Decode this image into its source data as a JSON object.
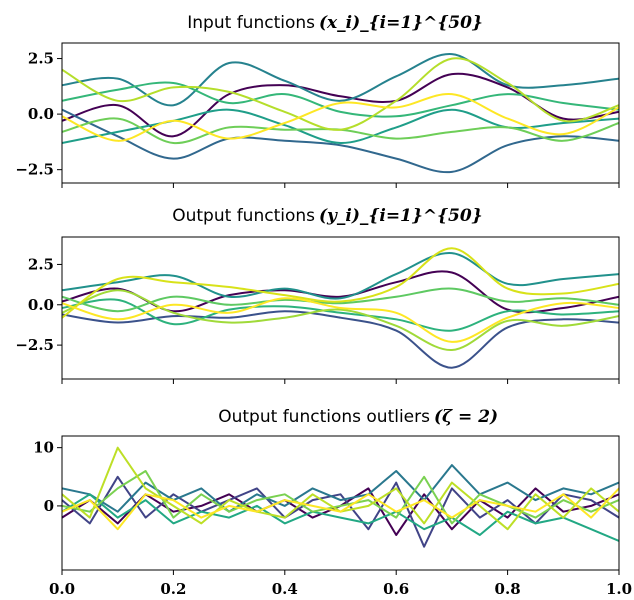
{
  "chart_data": [
    {
      "type": "line",
      "title": "Input functions",
      "title_math": "(x_i)_{i=1}^{50}",
      "n_series": 50,
      "xlim": [
        0,
        1
      ],
      "ylim": [
        -3.1,
        3.2
      ],
      "yticks": [
        -2.5,
        0.0,
        2.5
      ],
      "ytick_labels": [
        "−2.5",
        "0.0",
        "2.5"
      ],
      "xticks": [
        0.0,
        0.2,
        0.4,
        0.6,
        0.8,
        1.0
      ],
      "xtick_labels": [],
      "colormap": "viridis",
      "series": [
        {
          "color": "#440154",
          "x": [
            0.0,
            0.1,
            0.2,
            0.3,
            0.4,
            0.5,
            0.6,
            0.7,
            0.8,
            0.9,
            1.0
          ],
          "y": [
            -0.3,
            0.4,
            -1.0,
            0.9,
            1.3,
            0.8,
            0.6,
            1.8,
            1.2,
            -0.2,
            0.1
          ]
        },
        {
          "color": "#31688e",
          "x": [
            0.0,
            0.1,
            0.2,
            0.3,
            0.4,
            0.5,
            0.6,
            0.7,
            0.8,
            0.9,
            1.0
          ],
          "y": [
            0.2,
            -1.0,
            -2.0,
            -1.1,
            -1.2,
            -1.4,
            -2.0,
            -2.6,
            -1.4,
            -1.0,
            -1.2
          ]
        },
        {
          "color": "#26828e",
          "x": [
            0.0,
            0.1,
            0.2,
            0.3,
            0.4,
            0.5,
            0.6,
            0.7,
            0.8,
            0.9,
            1.0
          ],
          "y": [
            1.3,
            1.6,
            0.4,
            2.3,
            1.5,
            0.6,
            1.7,
            2.7,
            1.3,
            1.3,
            1.6
          ]
        },
        {
          "color": "#1f9e89",
          "x": [
            0.0,
            0.1,
            0.2,
            0.3,
            0.4,
            0.5,
            0.6,
            0.7,
            0.8,
            0.9,
            1.0
          ],
          "y": [
            -1.3,
            -0.8,
            -0.3,
            0.2,
            -0.5,
            -1.3,
            -0.6,
            0.2,
            -0.6,
            -0.4,
            -0.2
          ]
        },
        {
          "color": "#35b779",
          "x": [
            0.0,
            0.1,
            0.2,
            0.3,
            0.4,
            0.5,
            0.6,
            0.7,
            0.8,
            0.9,
            1.0
          ],
          "y": [
            0.6,
            1.1,
            1.4,
            0.5,
            0.9,
            0.1,
            -0.1,
            0.4,
            0.9,
            0.5,
            0.2
          ]
        },
        {
          "color": "#6ece58",
          "x": [
            0.0,
            0.1,
            0.2,
            0.3,
            0.4,
            0.5,
            0.6,
            0.7,
            0.8,
            0.9,
            1.0
          ],
          "y": [
            -0.8,
            -0.2,
            -1.3,
            -0.6,
            -0.7,
            -0.7,
            -1.1,
            -0.8,
            -0.6,
            -1.2,
            -0.4
          ]
        },
        {
          "color": "#b5de2b",
          "x": [
            0.0,
            0.1,
            0.2,
            0.3,
            0.4,
            0.5,
            0.6,
            0.7,
            0.8,
            0.9,
            1.0
          ],
          "y": [
            2.0,
            0.6,
            1.2,
            1.0,
            0.1,
            -0.7,
            0.6,
            2.5,
            1.4,
            -0.3,
            0.4
          ]
        },
        {
          "color": "#fde725",
          "x": [
            0.0,
            0.1,
            0.2,
            0.3,
            0.4,
            0.5,
            0.6,
            0.7,
            0.8,
            0.9,
            1.0
          ],
          "y": [
            -0.1,
            -1.2,
            -0.3,
            -1.1,
            -0.4,
            0.5,
            0.3,
            0.9,
            -0.2,
            -0.9,
            0.3
          ]
        }
      ]
    },
    {
      "type": "line",
      "title": "Output functions",
      "title_math": "(y_i)_{i=1}^{50}",
      "n_series": 50,
      "xlim": [
        0,
        1
      ],
      "ylim": [
        -4.6,
        4.2
      ],
      "yticks": [
        -2.5,
        0.0,
        2.5
      ],
      "ytick_labels": [
        "−2.5",
        "0.0",
        "2.5"
      ],
      "xticks": [
        0.0,
        0.2,
        0.4,
        0.6,
        0.8,
        1.0
      ],
      "xtick_labels": [],
      "colormap": "viridis",
      "series": [
        {
          "color": "#440154",
          "x": [
            0.0,
            0.1,
            0.2,
            0.3,
            0.4,
            0.5,
            0.6,
            0.7,
            0.8,
            0.9,
            1.0
          ],
          "y": [
            0.2,
            1.0,
            -0.4,
            0.6,
            0.9,
            0.5,
            1.4,
            2.0,
            -0.3,
            -0.2,
            0.5
          ]
        },
        {
          "color": "#3b528b",
          "x": [
            0.0,
            0.1,
            0.2,
            0.3,
            0.4,
            0.5,
            0.6,
            0.7,
            0.8,
            0.9,
            1.0
          ],
          "y": [
            -0.6,
            -1.1,
            -0.7,
            -0.8,
            -0.4,
            -0.8,
            -1.6,
            -3.9,
            -1.4,
            -0.9,
            -1.1
          ]
        },
        {
          "color": "#21918c",
          "x": [
            0.0,
            0.1,
            0.2,
            0.3,
            0.4,
            0.5,
            0.6,
            0.7,
            0.8,
            0.9,
            1.0
          ],
          "y": [
            0.9,
            1.4,
            1.8,
            0.5,
            1.0,
            0.4,
            1.9,
            3.2,
            1.3,
            1.6,
            1.9
          ]
        },
        {
          "color": "#2db27d",
          "x": [
            0.0,
            0.1,
            0.2,
            0.3,
            0.4,
            0.5,
            0.6,
            0.7,
            0.8,
            0.9,
            1.0
          ],
          "y": [
            -0.2,
            0.3,
            -1.2,
            -0.3,
            -0.1,
            -0.5,
            -0.9,
            -1.6,
            -0.4,
            -0.6,
            -0.4
          ]
        },
        {
          "color": "#5ec962",
          "x": [
            0.0,
            0.1,
            0.2,
            0.3,
            0.4,
            0.5,
            0.6,
            0.7,
            0.8,
            0.9,
            1.0
          ],
          "y": [
            0.5,
            -0.4,
            0.5,
            0.0,
            0.3,
            0.1,
            0.5,
            1.0,
            0.2,
            0.4,
            0.0
          ]
        },
        {
          "color": "#a0da39",
          "x": [
            0.0,
            0.1,
            0.2,
            0.3,
            0.4,
            0.5,
            0.6,
            0.7,
            0.8,
            0.9,
            1.0
          ],
          "y": [
            -0.5,
            0.9,
            -0.5,
            -1.1,
            -0.8,
            -0.3,
            -1.3,
            -2.8,
            -1.0,
            -1.3,
            -0.7
          ]
        },
        {
          "color": "#d8e219",
          "x": [
            0.0,
            0.1,
            0.2,
            0.3,
            0.4,
            0.5,
            0.6,
            0.7,
            0.8,
            0.9,
            1.0
          ],
          "y": [
            -0.8,
            1.6,
            1.4,
            1.1,
            0.6,
            0.2,
            1.1,
            3.5,
            1.0,
            0.7,
            1.3
          ]
        },
        {
          "color": "#fde725",
          "x": [
            0.0,
            0.1,
            0.2,
            0.3,
            0.4,
            0.5,
            0.6,
            0.7,
            0.8,
            0.9,
            1.0
          ],
          "y": [
            0.1,
            -0.9,
            0.0,
            -0.5,
            0.4,
            -0.2,
            -0.5,
            -2.3,
            -0.8,
            0.1,
            -0.2
          ]
        }
      ]
    },
    {
      "type": "line",
      "title": "Output functions outliers",
      "title_math": "(ζ = 2)",
      "n_series": 50,
      "xlim": [
        0,
        1
      ],
      "ylim": [
        -11,
        12
      ],
      "yticks": [
        0,
        10
      ],
      "ytick_labels": [
        "0",
        "10"
      ],
      "xticks": [
        0.0,
        0.2,
        0.4,
        0.6,
        0.8,
        1.0
      ],
      "xtick_labels": [
        "0.0",
        "0.2",
        "0.4",
        "0.6",
        "0.8",
        "1.0"
      ],
      "colormap": "viridis",
      "series": [
        {
          "color": "#440154",
          "x": [
            0.0,
            0.05,
            0.1,
            0.15,
            0.2,
            0.25,
            0.3,
            0.35,
            0.4,
            0.45,
            0.5,
            0.55,
            0.6,
            0.65,
            0.7,
            0.75,
            0.8,
            0.85,
            0.9,
            0.95,
            1.0
          ],
          "y": [
            -2,
            1,
            -3,
            2,
            -1,
            0,
            2,
            -1,
            1,
            -2,
            0,
            3,
            -5,
            2,
            -4,
            1,
            -2,
            3,
            -1,
            0,
            2
          ]
        },
        {
          "color": "#414487",
          "x": [
            0.0,
            0.05,
            0.1,
            0.15,
            0.2,
            0.25,
            0.3,
            0.35,
            0.4,
            0.45,
            0.5,
            0.55,
            0.6,
            0.65,
            0.7,
            0.75,
            0.8,
            0.85,
            0.9,
            0.95,
            1.0
          ],
          "y": [
            1,
            -3,
            5,
            -2,
            2,
            -1,
            1,
            3,
            -2,
            1,
            2,
            -4,
            4,
            -7,
            3,
            -2,
            1,
            -3,
            2,
            1,
            -2
          ]
        },
        {
          "color": "#2a788e",
          "x": [
            0.0,
            0.05,
            0.1,
            0.15,
            0.2,
            0.25,
            0.3,
            0.35,
            0.4,
            0.45,
            0.5,
            0.55,
            0.6,
            0.65,
            0.7,
            0.75,
            0.8,
            0.85,
            0.9,
            0.95,
            1.0
          ],
          "y": [
            3,
            2,
            -1,
            4,
            1,
            3,
            -1,
            2,
            0,
            3,
            1,
            2,
            6,
            1,
            7,
            2,
            4,
            1,
            3,
            2,
            4
          ]
        },
        {
          "color": "#22a884",
          "x": [
            0.0,
            0.05,
            0.1,
            0.15,
            0.2,
            0.25,
            0.3,
            0.35,
            0.4,
            0.45,
            0.5,
            0.55,
            0.6,
            0.65,
            0.7,
            0.75,
            0.8,
            0.85,
            0.9,
            0.95,
            1.0
          ],
          "y": [
            -1,
            2,
            -2,
            1,
            -3,
            -1,
            -2,
            0,
            -3,
            -1,
            -2,
            -3,
            -1,
            -4,
            -2,
            -5,
            -1,
            -3,
            -2,
            -4,
            -6
          ]
        },
        {
          "color": "#7ad151",
          "x": [
            0.0,
            0.05,
            0.1,
            0.15,
            0.2,
            0.25,
            0.3,
            0.35,
            0.4,
            0.45,
            0.5,
            0.55,
            0.6,
            0.65,
            0.7,
            0.75,
            0.8,
            0.85,
            0.9,
            0.95,
            1.0
          ],
          "y": [
            0,
            -1,
            3,
            6,
            -2,
            2,
            -1,
            1,
            2,
            -1,
            0,
            1,
            -2,
            5,
            -3,
            2,
            0,
            -2,
            1,
            -1,
            1
          ]
        },
        {
          "color": "#bddf26",
          "x": [
            0.0,
            0.05,
            0.1,
            0.15,
            0.2,
            0.25,
            0.3,
            0.35,
            0.4,
            0.45,
            0.5,
            0.55,
            0.6,
            0.65,
            0.7,
            0.75,
            0.8,
            0.85,
            0.9,
            0.95,
            1.0
          ],
          "y": [
            2,
            -2,
            10,
            3,
            0,
            -3,
            1,
            -1,
            -2,
            2,
            -1,
            0,
            3,
            -3,
            4,
            0,
            -4,
            2,
            -2,
            3,
            -1
          ]
        },
        {
          "color": "#fde725",
          "x": [
            0.0,
            0.05,
            0.1,
            0.15,
            0.2,
            0.25,
            0.3,
            0.35,
            0.4,
            0.45,
            0.5,
            0.55,
            0.6,
            0.65,
            0.7,
            0.75,
            0.8,
            0.85,
            0.9,
            0.95,
            1.0
          ],
          "y": [
            -1,
            1,
            -4,
            2,
            1,
            -2,
            0,
            -1,
            1,
            0,
            -1,
            2,
            -1,
            1,
            -2,
            1,
            0,
            -1,
            2,
            -2,
            3
          ]
        }
      ]
    }
  ]
}
